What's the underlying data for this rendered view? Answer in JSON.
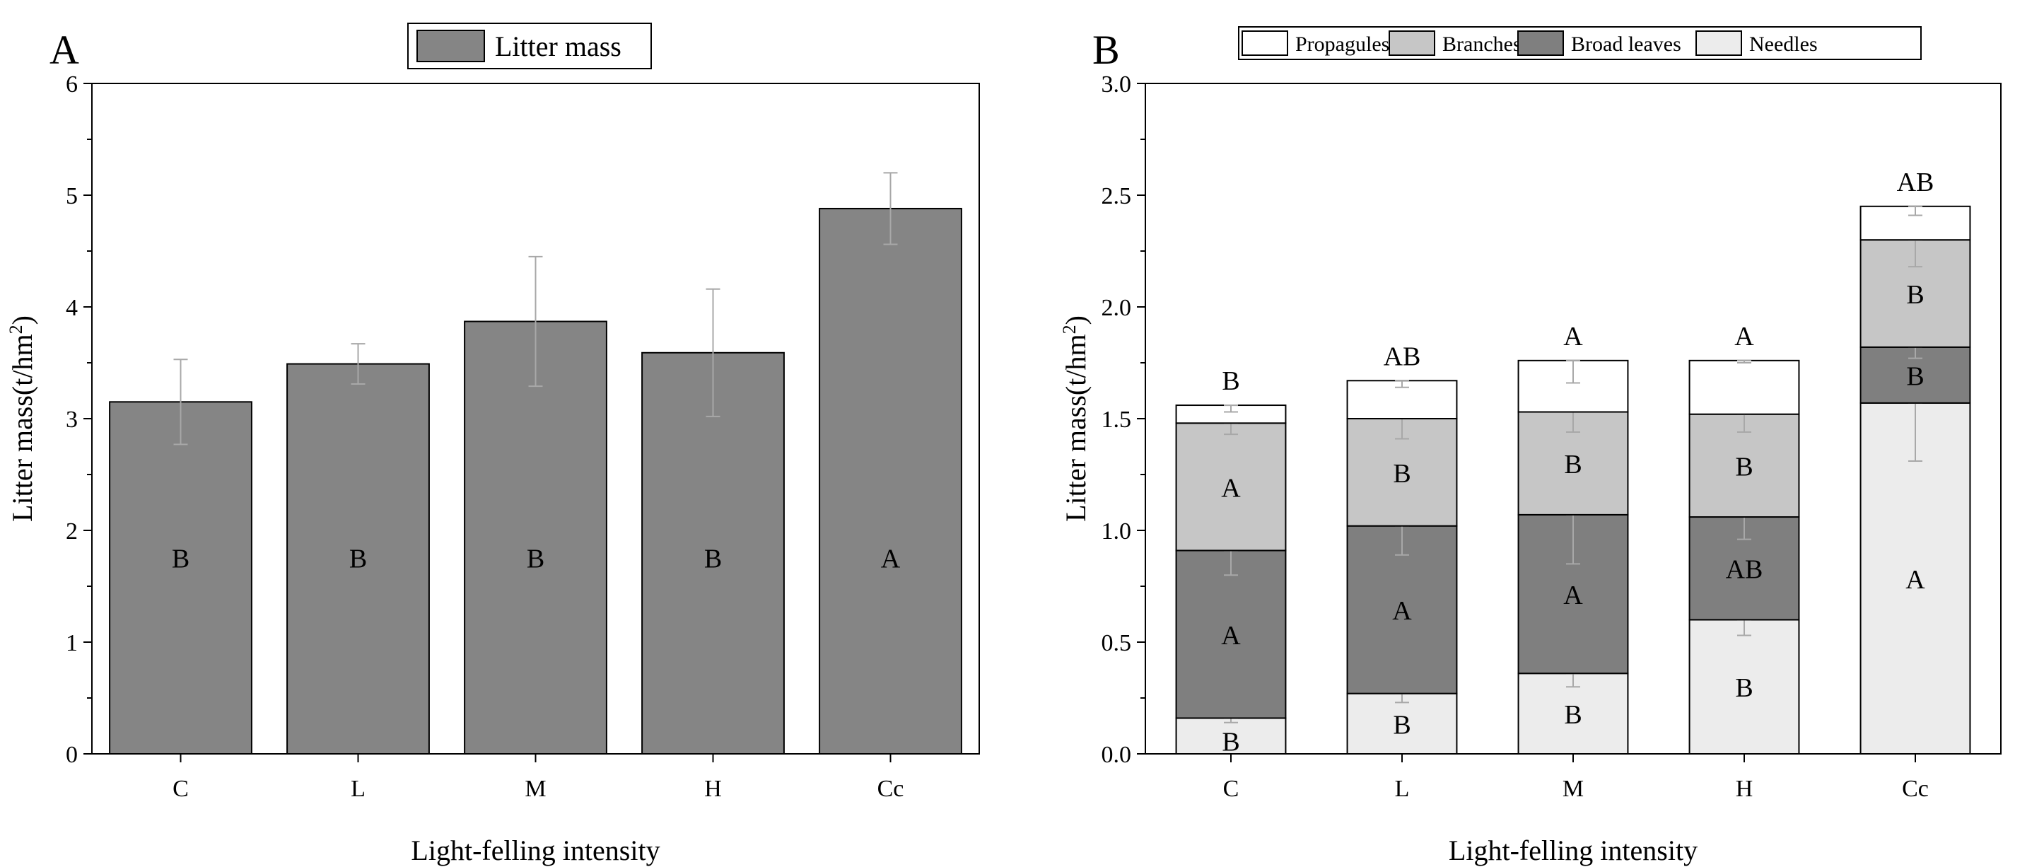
{
  "figure": {
    "panels": [
      "A",
      "B"
    ]
  },
  "chart_data": [
    {
      "panel": "A",
      "type": "bar",
      "title": "",
      "xlabel": "Light-felling intensity",
      "ylabel": "Litter mass(t/hm",
      "ylabel_sup": "2",
      "ylabel_close": ")",
      "ylim": [
        0,
        6
      ],
      "yticks": [
        "0",
        "1",
        "2",
        "3",
        "4",
        "5",
        "6"
      ],
      "categories": [
        "C",
        "L",
        "M",
        "H",
        "Cc"
      ],
      "legend": [
        "Litter mass"
      ],
      "legend_position": "top-center",
      "series": [
        {
          "name": "Litter mass",
          "values": [
            3.15,
            3.49,
            3.87,
            3.59,
            4.88
          ],
          "errors": [
            0.38,
            0.18,
            0.58,
            0.57,
            0.32
          ]
        }
      ],
      "letters": [
        "B",
        "B",
        "B",
        "B",
        "A"
      ],
      "colors": {
        "bar": "#858585",
        "error": "#a8a8a8"
      }
    },
    {
      "panel": "B",
      "type": "bar",
      "stacked": true,
      "title": "",
      "xlabel": "Light-felling intensity",
      "ylabel": "Litter mass(t/hm",
      "ylabel_sup": "2",
      "ylabel_close": ")",
      "ylim": [
        0,
        3.0
      ],
      "yticks": [
        "0.0",
        "0.5",
        "1.0",
        "1.5",
        "2.0",
        "2.5",
        "3.0"
      ],
      "categories": [
        "C",
        "L",
        "M",
        "H",
        "Cc"
      ],
      "legend": [
        "Propagules",
        "Branches",
        "Broad leaves",
        "Needles"
      ],
      "legend_position": "top-center",
      "series": [
        {
          "name": "Needles",
          "values": [
            0.16,
            0.27,
            0.36,
            0.6,
            1.57
          ],
          "errors": [
            0.02,
            0.04,
            0.06,
            0.07,
            0.26
          ],
          "letters": [
            "B",
            "B",
            "B",
            "B",
            "A"
          ]
        },
        {
          "name": "Broad leaves",
          "values": [
            0.75,
            0.75,
            0.71,
            0.46,
            0.25
          ],
          "errors": [
            0.11,
            0.13,
            0.22,
            0.1,
            0.05
          ],
          "letters": [
            "A",
            "A",
            "A",
            "AB",
            "B"
          ]
        },
        {
          "name": "Branches",
          "values": [
            0.57,
            0.48,
            0.46,
            0.46,
            0.48
          ],
          "errors": [
            0.05,
            0.09,
            0.09,
            0.08,
            0.12
          ],
          "letters": [
            "A",
            "B",
            "B",
            "B",
            "B"
          ]
        },
        {
          "name": "Propagules",
          "values": [
            0.08,
            0.17,
            0.23,
            0.24,
            0.15
          ],
          "errors": [
            0.03,
            0.03,
            0.1,
            0.01,
            0.04
          ]
        }
      ],
      "top_letters": [
        "B",
        "AB",
        "A",
        "A",
        "AB"
      ],
      "colors": {
        "Needles": "#ececec",
        "Broad leaves": "#7f7f7f",
        "Branches": "#c6c6c6",
        "Propagules": "#ffffff",
        "error": "#a8a8a8"
      }
    }
  ]
}
